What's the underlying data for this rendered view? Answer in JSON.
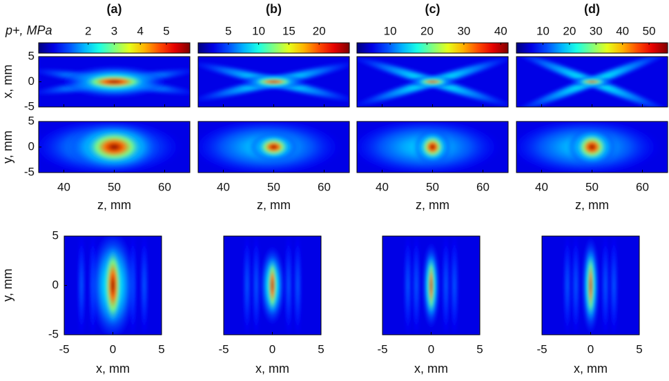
{
  "figure": {
    "colorbar_label": "p+, MPa",
    "row_labels": [
      "x, mm",
      "y, mm",
      "y, mm"
    ]
  },
  "chart_data": [
    {
      "type": "heatmap",
      "title": "(a)",
      "colorbar": {
        "lim": [
          0.1,
          5.9
        ],
        "ticks": [
          2,
          3,
          4,
          5
        ]
      },
      "axial": {
        "xlim": [
          35,
          65
        ],
        "xticks": [
          40,
          50,
          60
        ],
        "ylim": [
          -5,
          5
        ],
        "yticks": [
          -5,
          0,
          5
        ],
        "xlabel": "z, mm"
      },
      "transverse": {
        "xlim": [
          -5,
          5
        ],
        "xticks": [
          -5,
          0,
          5
        ],
        "ylim": [
          -5,
          5
        ],
        "yticks": [
          -5,
          0,
          5
        ],
        "xlabel": "x, mm"
      }
    },
    {
      "type": "heatmap",
      "title": "(b)",
      "colorbar": {
        "lim": [
          0,
          25
        ],
        "ticks": [
          5,
          10,
          15,
          20
        ]
      },
      "axial": {
        "xlim": [
          35,
          65
        ],
        "xticks": [
          40,
          50,
          60
        ],
        "ylim": [
          -5,
          5
        ],
        "xlabel": "z, mm"
      },
      "transverse": {
        "xlim": [
          -5,
          5
        ],
        "xticks": [
          -5,
          0,
          5
        ],
        "ylim": [
          -5,
          5
        ],
        "xlabel": "x, mm"
      }
    },
    {
      "type": "heatmap",
      "title": "(c)",
      "colorbar": {
        "lim": [
          1,
          42
        ],
        "ticks": [
          10,
          20,
          30,
          40
        ]
      },
      "axial": {
        "xlim": [
          35,
          65
        ],
        "xticks": [
          40,
          50,
          60
        ],
        "ylim": [
          -5,
          5
        ],
        "xlabel": "z, mm"
      },
      "transverse": {
        "xlim": [
          -5,
          5
        ],
        "xticks": [
          -5,
          0,
          5
        ],
        "ylim": [
          -5,
          5
        ],
        "xlabel": "x, mm"
      }
    },
    {
      "type": "heatmap",
      "title": "(d)",
      "colorbar": {
        "lim": [
          0,
          57
        ],
        "ticks": [
          10,
          20,
          30,
          40,
          50
        ]
      },
      "axial": {
        "xlim": [
          35,
          65
        ],
        "xticks": [
          40,
          50,
          60
        ],
        "ylim": [
          -5,
          5
        ],
        "xlabel": "z, mm"
      },
      "transverse": {
        "xlim": [
          -5,
          5
        ],
        "xticks": [
          -5,
          0,
          5
        ],
        "ylim": [
          -5,
          5
        ],
        "xlabel": "x, mm"
      }
    }
  ]
}
